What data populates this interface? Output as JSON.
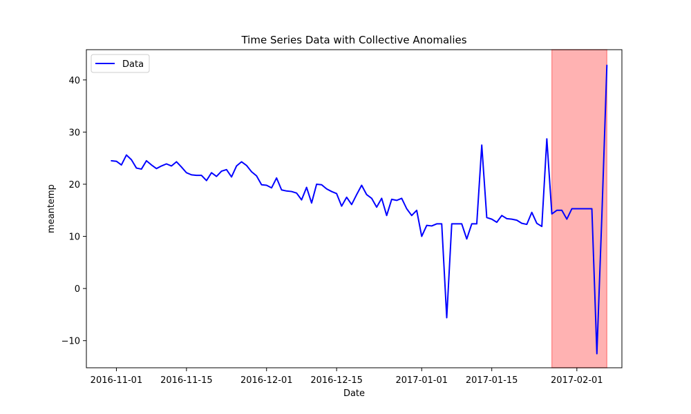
{
  "chart_data": {
    "type": "line",
    "title": "Time Series Data with Collective Anomalies",
    "xlabel": "Date",
    "ylabel": "meantemp",
    "xlim": [
      "2016-10-26",
      "2017-02-10"
    ],
    "ylim": [
      -15.2,
      45.8
    ],
    "xticks": [
      "2016-11-01",
      "2016-11-15",
      "2016-12-01",
      "2016-12-15",
      "2017-01-01",
      "2017-01-15",
      "2017-02-01"
    ],
    "yticks": [
      -10,
      0,
      10,
      20,
      30,
      40
    ],
    "grid": false,
    "legend": {
      "position": "top-left",
      "entries": [
        "Data"
      ]
    },
    "series": [
      {
        "name": "Data",
        "color": "#0000ff",
        "x": [
          "2016-10-31",
          "2016-11-01",
          "2016-11-02",
          "2016-11-03",
          "2016-11-04",
          "2016-11-05",
          "2016-11-06",
          "2016-11-07",
          "2016-11-08",
          "2016-11-09",
          "2016-11-10",
          "2016-11-11",
          "2016-11-12",
          "2016-11-13",
          "2016-11-14",
          "2016-11-15",
          "2016-11-16",
          "2016-11-17",
          "2016-11-18",
          "2016-11-19",
          "2016-11-20",
          "2016-11-21",
          "2016-11-22",
          "2016-11-23",
          "2016-11-24",
          "2016-11-25",
          "2016-11-26",
          "2016-11-27",
          "2016-11-28",
          "2016-11-29",
          "2016-11-30",
          "2016-12-01",
          "2016-12-02",
          "2016-12-03",
          "2016-12-04",
          "2016-12-05",
          "2016-12-06",
          "2016-12-07",
          "2016-12-08",
          "2016-12-09",
          "2016-12-10",
          "2016-12-11",
          "2016-12-12",
          "2016-12-13",
          "2016-12-14",
          "2016-12-15",
          "2016-12-16",
          "2016-12-17",
          "2016-12-18",
          "2016-12-19",
          "2016-12-20",
          "2016-12-21",
          "2016-12-22",
          "2016-12-23",
          "2016-12-24",
          "2016-12-25",
          "2016-12-26",
          "2016-12-27",
          "2016-12-28",
          "2016-12-29",
          "2016-12-30",
          "2016-12-31",
          "2017-01-01",
          "2017-01-02",
          "2017-01-03",
          "2017-01-04",
          "2017-01-05",
          "2017-01-06",
          "2017-01-07",
          "2017-01-08",
          "2017-01-09",
          "2017-01-10",
          "2017-01-11",
          "2017-01-12",
          "2017-01-13",
          "2017-01-14",
          "2017-01-15",
          "2017-01-16",
          "2017-01-17",
          "2017-01-18",
          "2017-01-19",
          "2017-01-20",
          "2017-01-21",
          "2017-01-22",
          "2017-01-23",
          "2017-01-24",
          "2017-01-25",
          "2017-01-26",
          "2017-01-27",
          "2017-01-28",
          "2017-01-29",
          "2017-01-30",
          "2017-01-31",
          "2017-02-01",
          "2017-02-02",
          "2017-02-03",
          "2017-02-04",
          "2017-02-05",
          "2017-02-06",
          "2017-02-07"
        ],
        "y": [
          24.5,
          24.4,
          23.7,
          25.6,
          24.7,
          23.1,
          22.9,
          24.5,
          23.7,
          23.0,
          23.5,
          23.9,
          23.5,
          24.3,
          23.3,
          22.2,
          21.8,
          21.7,
          21.7,
          20.7,
          22.2,
          21.5,
          22.5,
          22.8,
          21.4,
          23.5,
          24.3,
          23.6,
          22.4,
          21.6,
          19.9,
          19.8,
          19.3,
          21.2,
          18.9,
          18.7,
          18.6,
          18.3,
          17.0,
          19.4,
          16.4,
          20.0,
          19.9,
          19.1,
          18.6,
          18.2,
          15.8,
          17.5,
          16.1,
          18.0,
          19.8,
          18.0,
          17.3,
          15.6,
          17.3,
          14.0,
          17.1,
          16.9,
          17.3,
          15.3,
          14.0,
          15.0,
          10.0,
          12.1,
          12.0,
          12.4,
          12.4,
          -5.6,
          12.4,
          12.4,
          12.4,
          9.5,
          12.4,
          12.4,
          27.5,
          13.6,
          13.3,
          12.7,
          14.0,
          13.4,
          13.3,
          13.1,
          12.5,
          12.3,
          14.6,
          12.5,
          11.9,
          28.7,
          14.3,
          15.0,
          15.0,
          13.3,
          15.3,
          15.3,
          15.3,
          15.3,
          15.3,
          -12.5,
          14.0,
          42.8
        ]
      }
    ],
    "anomaly_region": {
      "start": "2017-01-27",
      "end": "2017-02-07",
      "color": "#ff0000",
      "alpha": 0.3
    }
  }
}
